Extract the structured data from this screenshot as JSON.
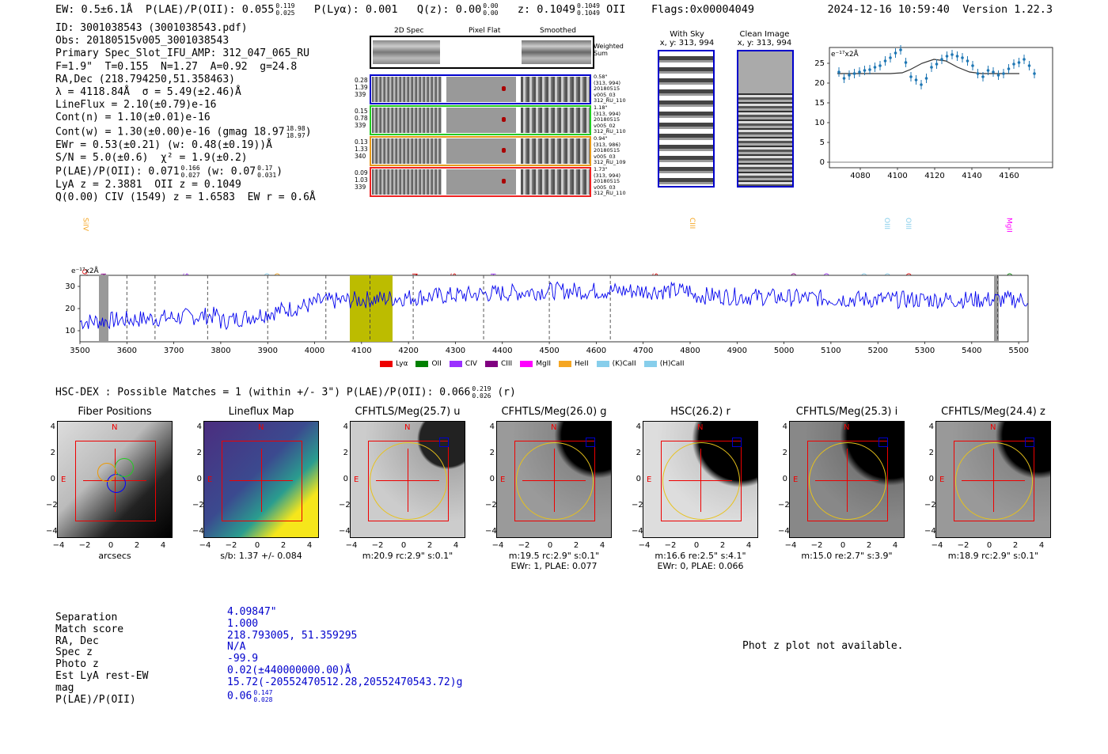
{
  "header": {
    "ew": "EW: 0.5±6.1Å",
    "plae_label": "P(LAE)/P(OII): 0.055",
    "plae_hi": "0.119",
    "plae_lo": "0.025",
    "plya": "P(Lyα): 0.001",
    "qz_label": "Q(z): 0.00",
    "qz_hi": "0.00",
    "qz_lo": "0.00",
    "z_label": "z: 0.1049",
    "z_hi": "0.1049",
    "z_lo": "0.1049",
    "z_line": "OII",
    "flags": "Flags:0x00004049",
    "timestamp": "2024-12-16 10:59:40",
    "version": "Version 1.22.3"
  },
  "info": {
    "lines": [
      "ID: 3001038543 (3001038543.pdf)",
      "Obs: 20180515v005_3001038543",
      "Primary Spec_Slot_IFU_AMP: 312_047_065_RU",
      "F=1.9\"  T=0.155  N=1.27  A=0.92  g=24.8",
      "RA,Dec (218.794250,51.358463)",
      "λ = 4118.84Å  σ = 5.49(±2.46)Å",
      "LineFlux = 2.10(±0.79)e-16",
      "Cont(n) = 1.10(±0.01)e-16",
      "Cont(w) = 1.30(±0.00)e-16 (gmag 18.97",
      "EWr = 0.53(±0.21) (w: 0.48(±0.19))Å",
      "S/N = 5.0(±0.6)  χ² = 1.9(±0.2)",
      "P(LAE)/P(OII): 0.071",
      "LyA z = 2.3881  OII z = 0.1049",
      "Q(0.00) CIV (1549) z = 1.6583  EW r = 0.6Å"
    ],
    "gmag_hi": "18.98",
    "gmag_lo": "18.97",
    "plae2_hi": "0.166",
    "plae2_lo": "0.027",
    "plae2_w": "(w: 0.07",
    "plae2_w_hi": "0.17",
    "plae2_w_lo": "0.031"
  },
  "spec2d": {
    "col_titles": [
      "2D Spec",
      "Pixel Flat",
      "Smoothed"
    ],
    "weighted_sum": "Weighted Sum",
    "rows": [
      {
        "left": [
          "0.28",
          "1.39",
          "339"
        ],
        "right": [
          "0.58\"",
          "(313, 994)",
          "20180515",
          "v005_03",
          "312_RU_110"
        ],
        "color": "#0000cc"
      },
      {
        "left": [
          "0.15",
          "0.78",
          "339"
        ],
        "right": [
          "1.18\"",
          "(313, 994)",
          "20180515",
          "v005_02",
          "312_RU_110"
        ],
        "color": "#22cc22"
      },
      {
        "left": [
          "0.13",
          "1.33",
          "340"
        ],
        "right": [
          "0.94\"",
          "(313, 986)",
          "20180515",
          "v005_03",
          "312_RU_109"
        ],
        "color": "#e69a1a"
      },
      {
        "left": [
          "0.09",
          "1.03",
          "339"
        ],
        "right": [
          "1.73\"",
          "(313, 994)",
          "20180515",
          "v005_03",
          "312_RU_110"
        ],
        "color": "#ee2222"
      }
    ]
  },
  "sky": {
    "with_sky": "With Sky",
    "with_sky_xy": "x, y: 313, 994",
    "clean": "Clean Image",
    "clean_xy": "x, y: 313, 994"
  },
  "zoom_plot": {
    "ylabel": "e⁻¹⁷x2Å",
    "xticks": [
      "4080",
      "4100",
      "4120",
      "4140",
      "4160"
    ],
    "yticks": [
      "0",
      "5",
      "10",
      "15",
      "20",
      "25"
    ]
  },
  "full_spectrum": {
    "ylabel": "e⁻¹⁷x2Å",
    "xticks": [
      "3500",
      "3600",
      "3700",
      "3800",
      "3900",
      "4000",
      "4100",
      "4200",
      "4300",
      "4400",
      "4500",
      "4600",
      "4700",
      "4800",
      "4900",
      "5000",
      "5100",
      "5200",
      "5300",
      "5400",
      "5500"
    ],
    "yticks": [
      "10",
      "20",
      "30"
    ],
    "line_labels": [
      {
        "t": "OVI",
        "c": "#e00000"
      },
      {
        "t": "HeII",
        "c": "#8b008b"
      },
      {
        "t": "SiIV",
        "c": "#f5a623"
      },
      {
        "t": "SiIV",
        "c": "#9b30ff"
      },
      {
        "t": "OII",
        "c": "#87ceeb"
      },
      {
        "t": "CIV",
        "c": "#f5a623"
      },
      {
        "t": "NV",
        "c": "#e00000"
      },
      {
        "t": "SiII",
        "c": "#e00000"
      },
      {
        "t": "HeII",
        "c": "#9b30ff"
      },
      {
        "t": "Hγ",
        "c": "#87ceeb"
      },
      {
        "t": "Hγ",
        "c": "#87ceeb"
      },
      {
        "t": "SiIV",
        "c": "#e00000"
      },
      {
        "t": "Hγ",
        "c": "#008000"
      },
      {
        "t": "CIII",
        "c": "#f5a623"
      },
      {
        "t": "CII",
        "c": "#8b008b"
      },
      {
        "t": "Hβ",
        "c": "#87ceeb"
      },
      {
        "t": "CIII",
        "c": "#9b30ff"
      },
      {
        "t": "Hβ",
        "c": "#87ceeb"
      },
      {
        "t": "OIII",
        "c": "#87ceeb"
      },
      {
        "t": "OIII",
        "c": "#87ceeb"
      },
      {
        "t": "OIII",
        "c": "#87ceeb"
      },
      {
        "t": "CIV",
        "c": "#e00000"
      },
      {
        "t": "OIII",
        "c": "#87ceeb"
      },
      {
        "t": "Hβ",
        "c": "#008000"
      },
      {
        "t": "OIII",
        "c": "#008000"
      },
      {
        "t": "MgII",
        "c": "#ff00ff"
      }
    ],
    "legend": [
      {
        "t": "Lyα",
        "c": "#ee0000"
      },
      {
        "t": "OII",
        "c": "#008000"
      },
      {
        "t": "CIV",
        "c": "#9b30ff"
      },
      {
        "t": "CIII",
        "c": "#800080"
      },
      {
        "t": "MgII",
        "c": "#ff00ff"
      },
      {
        "t": "HeII",
        "c": "#f5a623"
      },
      {
        "t": "(K)CaII",
        "c": "#87ceeb"
      },
      {
        "t": "(H)CaII",
        "c": "#87ceeb"
      }
    ]
  },
  "hsc": {
    "title": "HSC-DEX : Possible Matches = 1 (within +/- 3\")  P(LAE)/P(OII): 0.066",
    "plae_hi": "0.219",
    "plae_lo": "0.026",
    "band": "(r)"
  },
  "cutouts": [
    {
      "title": "Fiber Positions",
      "l1": "arcsecs",
      "l2": ""
    },
    {
      "title": "Lineflux Map",
      "l1": "s/b: 1.37 +/- 0.084",
      "l2": ""
    },
    {
      "title": "CFHTLS/Meg(25.7) u",
      "l1": "m:20.9 rc:2.9\"  s:0.1\"",
      "l2": ""
    },
    {
      "title": "CFHTLS/Meg(26.0) g",
      "l1": "m:19.5 rc:2.9\"  s:0.1\"",
      "l2": "EWr: 1, PLAE: 0.077"
    },
    {
      "title": "HSC(26.2) r",
      "l1": "m:16.6  re:2.5\"  s:4.1\"",
      "l2": "EWr: 0, PLAE: 0.066"
    },
    {
      "title": "CFHTLS/Meg(25.3) i",
      "l1": "m:15.0  re:2.7\"  s:3.9\"",
      "l2": ""
    },
    {
      "title": "CFHTLS/Meg(24.4) z",
      "l1": "m:18.9 rc:2.9\"  s:0.1\"",
      "l2": ""
    }
  ],
  "cutout_ticks": {
    "x": [
      "−4",
      "−2",
      "0",
      "2",
      "4"
    ],
    "y": [
      "4",
      "2",
      "0",
      "−2",
      "−4"
    ],
    "north": "N",
    "east": "E"
  },
  "match_table": {
    "labels": [
      "Separation",
      "Match score",
      "RA, Dec",
      "Spec z",
      "Photo z",
      "Est LyA rest-EW",
      "mag",
      "P(LAE)/P(OII)"
    ],
    "values": [
      "4.09847\"",
      "1.000",
      "218.793005, 51.359295",
      "N/A",
      "-99.9",
      "0.02(±440000000.00)Å",
      "15.72(-20552470512.28,20552470543.72)g",
      "0.06"
    ],
    "plae_hi": "0.147",
    "plae_lo": "0.028"
  },
  "photz_note": "Phot z plot not available."
}
